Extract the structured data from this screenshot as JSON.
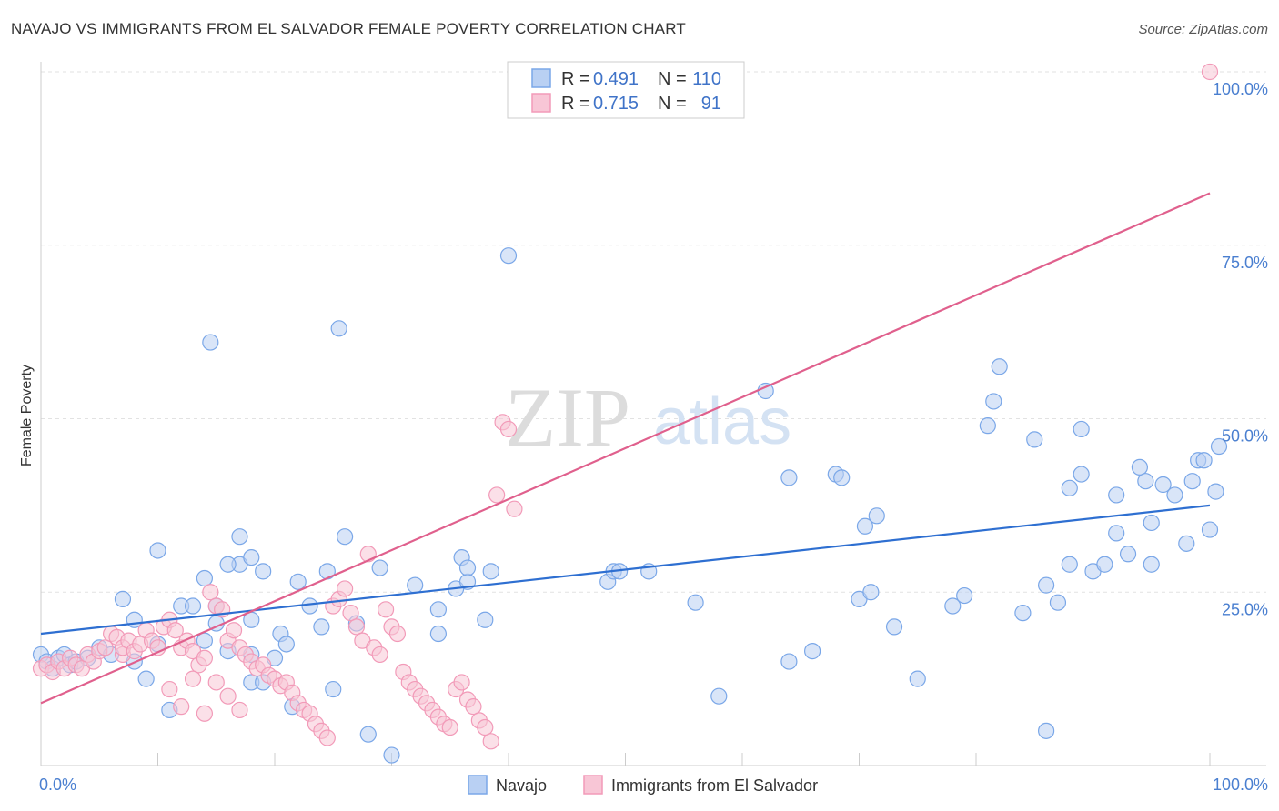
{
  "header": {
    "title": "NAVAJO VS IMMIGRANTS FROM EL SALVADOR FEMALE POVERTY CORRELATION CHART",
    "source": "Source: ZipAtlas.com"
  },
  "watermark": {
    "zip": "ZIP",
    "atlas": "atlas"
  },
  "chart_data": {
    "type": "scatter",
    "title": "NAVAJO VS IMMIGRANTS FROM EL SALVADOR FEMALE POVERTY CORRELATION CHART",
    "xlabel": "",
    "ylabel": "Female Poverty",
    "xlim": [
      0,
      100
    ],
    "ylim": [
      0,
      100
    ],
    "x_tick_labels": {
      "left": "0.0%",
      "right": "100.0%"
    },
    "y_tick_labels": [
      {
        "value": 25,
        "label": "25.0%"
      },
      {
        "value": 50,
        "label": "50.0%"
      },
      {
        "value": 75,
        "label": "75.0%"
      },
      {
        "value": 100,
        "label": "100.0%"
      }
    ],
    "grid": true,
    "legend_position": "top-center",
    "stats": [
      {
        "r_label": "R =",
        "r_value": "0.491",
        "n_label": "N =",
        "n_value": "110"
      },
      {
        "r_label": "R =",
        "r_value": "0.715",
        "n_label": "N =",
        "n_value": "91"
      }
    ],
    "series": [
      {
        "name": "Navajo",
        "color": "#7aa7e8",
        "fill": "#b9d0f3",
        "line_color": "#2e6fd1",
        "trend": {
          "x": [
            0,
            100
          ],
          "y": [
            19.0,
            37.5
          ]
        },
        "points": [
          [
            0,
            16
          ],
          [
            0.5,
            15
          ],
          [
            1,
            14
          ],
          [
            1.5,
            15.5
          ],
          [
            2,
            16
          ],
          [
            2.5,
            14.5
          ],
          [
            3,
            15
          ],
          [
            4,
            15.5
          ],
          [
            5,
            17
          ],
          [
            6,
            16
          ],
          [
            7,
            24
          ],
          [
            8,
            15
          ],
          [
            8,
            21
          ],
          [
            9,
            12.5
          ],
          [
            10,
            31
          ],
          [
            10,
            17.5
          ],
          [
            11,
            8
          ],
          [
            12,
            23
          ],
          [
            13,
            23
          ],
          [
            14,
            27
          ],
          [
            14,
            18
          ],
          [
            15,
            23
          ],
          [
            15,
            20.5
          ],
          [
            16,
            16.5
          ],
          [
            17,
            29
          ],
          [
            18,
            12
          ],
          [
            18,
            21
          ],
          [
            18,
            16
          ],
          [
            19,
            12
          ],
          [
            14.5,
            61
          ],
          [
            16,
            29
          ],
          [
            17,
            33
          ],
          [
            18,
            30
          ],
          [
            19,
            28
          ],
          [
            20,
            15.5
          ],
          [
            20.5,
            19
          ],
          [
            21,
            17.5
          ],
          [
            21.5,
            8.5
          ],
          [
            22,
            26.5
          ],
          [
            23,
            23
          ],
          [
            24,
            20
          ],
          [
            24.5,
            28
          ],
          [
            25,
            11
          ],
          [
            25.5,
            63
          ],
          [
            26,
            33
          ],
          [
            27,
            20.5
          ],
          [
            28,
            4.5
          ],
          [
            29,
            28.5
          ],
          [
            30,
            1.5
          ],
          [
            32,
            26
          ],
          [
            34,
            22.5
          ],
          [
            34,
            19
          ],
          [
            36,
            30
          ],
          [
            35.5,
            25.5
          ],
          [
            36.5,
            26.5
          ],
          [
            36.5,
            28.5
          ],
          [
            38,
            21
          ],
          [
            38.5,
            28
          ],
          [
            40,
            73.5
          ],
          [
            48.5,
            26.5
          ],
          [
            49,
            28
          ],
          [
            49.5,
            28
          ],
          [
            52,
            28
          ],
          [
            56,
            23.5
          ],
          [
            58,
            10
          ],
          [
            62,
            54
          ],
          [
            64,
            41.5
          ],
          [
            64,
            15
          ],
          [
            66,
            16.5
          ],
          [
            68,
            42
          ],
          [
            68.5,
            41.5
          ],
          [
            70,
            24
          ],
          [
            70.5,
            34.5
          ],
          [
            71,
            25
          ],
          [
            71.5,
            36
          ],
          [
            73,
            20
          ],
          [
            75,
            12.5
          ],
          [
            78,
            23
          ],
          [
            79,
            24.5
          ],
          [
            81,
            49
          ],
          [
            81.5,
            52.5
          ],
          [
            82,
            57.5
          ],
          [
            84,
            22
          ],
          [
            85,
            47
          ],
          [
            86,
            5
          ],
          [
            86,
            26
          ],
          [
            87,
            23.5
          ],
          [
            88,
            29
          ],
          [
            88,
            40
          ],
          [
            89,
            48.5
          ],
          [
            89,
            42
          ],
          [
            90,
            28
          ],
          [
            91,
            29
          ],
          [
            92,
            33.5
          ],
          [
            92,
            39
          ],
          [
            93,
            30.5
          ],
          [
            94,
            43
          ],
          [
            94.5,
            41
          ],
          [
            95,
            35
          ],
          [
            95,
            29
          ],
          [
            96,
            40.5
          ],
          [
            97,
            39
          ],
          [
            98,
            32
          ],
          [
            98.5,
            41
          ],
          [
            99,
            44
          ],
          [
            99.5,
            44
          ],
          [
            100,
            34
          ],
          [
            100.5,
            39.5
          ],
          [
            101,
            46
          ]
        ]
      },
      {
        "name": "Immigrants from El Salvador",
        "color": "#f29ab8",
        "fill": "#f8c6d6",
        "line_color": "#e0608d",
        "trend": {
          "x": [
            0,
            100
          ],
          "y": [
            9.0,
            82.5
          ]
        },
        "points": [
          [
            0,
            14
          ],
          [
            0.5,
            14.5
          ],
          [
            1,
            13.5
          ],
          [
            1.5,
            15
          ],
          [
            2,
            14
          ],
          [
            2.5,
            15.5
          ],
          [
            3,
            14.5
          ],
          [
            3.5,
            14
          ],
          [
            4,
            16
          ],
          [
            4.5,
            15
          ],
          [
            5,
            16.5
          ],
          [
            5.5,
            17
          ],
          [
            6,
            19
          ],
          [
            6.5,
            18.5
          ],
          [
            7,
            16
          ],
          [
            7,
            17
          ],
          [
            7.5,
            18
          ],
          [
            8,
            16.5
          ],
          [
            8.5,
            17.5
          ],
          [
            9,
            19.5
          ],
          [
            9.5,
            18
          ],
          [
            10,
            17
          ],
          [
            10.5,
            20
          ],
          [
            11,
            21
          ],
          [
            11.5,
            19.5
          ],
          [
            12,
            17
          ],
          [
            12.5,
            18
          ],
          [
            13,
            16.5
          ],
          [
            13.5,
            14.5
          ],
          [
            14,
            15.5
          ],
          [
            14.5,
            25
          ],
          [
            15,
            23
          ],
          [
            15.5,
            22.5
          ],
          [
            16,
            18
          ],
          [
            16.5,
            19.5
          ],
          [
            17,
            17
          ],
          [
            17.5,
            16
          ],
          [
            18,
            15
          ],
          [
            18.5,
            14
          ],
          [
            19,
            14.5
          ],
          [
            19.5,
            13
          ],
          [
            20,
            12.5
          ],
          [
            20.5,
            11.5
          ],
          [
            21,
            12
          ],
          [
            21.5,
            10.5
          ],
          [
            22,
            9
          ],
          [
            22.5,
            8
          ],
          [
            23,
            7.5
          ],
          [
            23.5,
            6
          ],
          [
            24,
            5
          ],
          [
            24.5,
            4
          ],
          [
            25,
            23
          ],
          [
            25.5,
            24
          ],
          [
            26,
            25.5
          ],
          [
            26.5,
            22
          ],
          [
            27,
            20
          ],
          [
            27.5,
            18
          ],
          [
            28,
            30.5
          ],
          [
            28.5,
            17
          ],
          [
            29,
            16
          ],
          [
            29.5,
            22.5
          ],
          [
            30,
            20
          ],
          [
            30.5,
            19
          ],
          [
            31,
            13.5
          ],
          [
            31.5,
            12
          ],
          [
            32,
            11
          ],
          [
            32.5,
            10
          ],
          [
            33,
            9
          ],
          [
            33.5,
            8
          ],
          [
            34,
            7
          ],
          [
            34.5,
            6
          ],
          [
            35,
            5.5
          ],
          [
            35.5,
            11
          ],
          [
            36,
            12
          ],
          [
            36.5,
            9.5
          ],
          [
            37,
            8.5
          ],
          [
            37.5,
            6.5
          ],
          [
            38,
            5.5
          ],
          [
            38.5,
            3.5
          ],
          [
            39,
            39
          ],
          [
            39.5,
            49.5
          ],
          [
            40,
            48.5
          ],
          [
            40.5,
            37
          ],
          [
            11,
            11
          ],
          [
            12,
            8.5
          ],
          [
            13,
            12.5
          ],
          [
            14,
            7.5
          ],
          [
            15,
            12
          ],
          [
            16,
            10
          ],
          [
            17,
            8
          ],
          [
            100,
            100
          ]
        ]
      }
    ]
  },
  "legend": {
    "items": [
      "Navajo",
      "Immigrants from El Salvador"
    ]
  }
}
